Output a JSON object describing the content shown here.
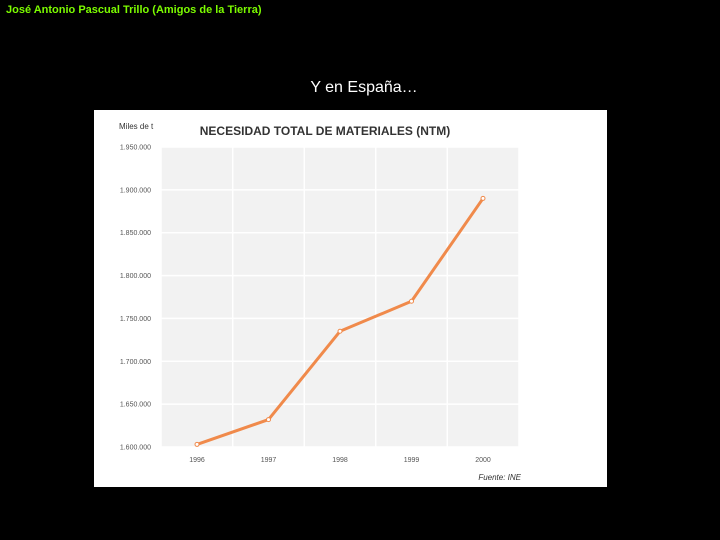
{
  "header": {
    "credit": "José Antonio Pascual Trillo (Amigos de la Tierra)"
  },
  "slide": {
    "title": "Y en España…"
  },
  "colors": {
    "line": "#f08a4b",
    "plot_bg": "#f2f2f2",
    "grid": "#ffffff",
    "credit_text": "#7cfc00"
  },
  "chart_data": {
    "type": "line",
    "title": "NECESIDAD TOTAL DE MATERIALES (NTM)",
    "ylabel": "Miles de t",
    "xlabel": "",
    "source": "Fuente: INE",
    "x": [
      "1996",
      "1997",
      "1998",
      "1999",
      "2000"
    ],
    "series": [
      {
        "values": [
          1603000,
          1632000,
          1735000,
          1770000,
          1890000
        ]
      }
    ],
    "yticks": [
      "1.600.000",
      "1.650.000",
      "1.700.000",
      "1.750.000",
      "1.800.000",
      "1.850.000",
      "1.900.000",
      "1.950.000"
    ],
    "ylim": [
      1600000,
      1950000
    ],
    "grid": true,
    "legend": "none"
  }
}
